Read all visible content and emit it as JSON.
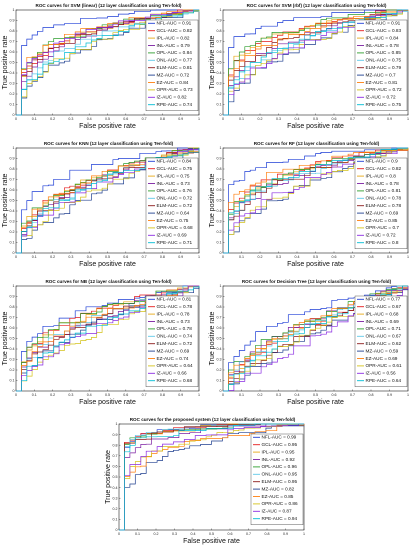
{
  "colors": {
    "NFL": "#1f3fd6",
    "GCL": "#e41a1c",
    "IPL": "#e6a817",
    "INL": "#7b1fa2",
    "OPL": "#2e9e2e",
    "ONL": "#5ec8e8",
    "ELM": "#8b1a1a",
    "MZ": "#1f3f8f",
    "EZ": "#ff7f0e",
    "OPR": "#d4c21a",
    "IZ": "#8a2be2",
    "RPE": "#00bcd4"
  },
  "xlabel": "False positive rate",
  "ylabel": "True positive rate",
  "ticks": [
    "0",
    "0.1",
    "0.2",
    "0.3",
    "0.4",
    "0.5",
    "0.6",
    "0.7",
    "0.8",
    "0.9",
    "1"
  ],
  "chart_data": [
    {
      "type": "line",
      "title": "ROC curves for SVM (linear) (12 layer classification using Ten-fold)",
      "xlabel": "False positive rate",
      "ylabel": "True positive rate",
      "xlim": [
        0,
        1
      ],
      "ylim": [
        0,
        1
      ],
      "grid": false,
      "legend": "right",
      "series": [
        {
          "name": "NFL-AUC = 0.91",
          "key": "NFL",
          "auc": 0.91
        },
        {
          "name": "GCL-AUC = 0.82",
          "key": "GCL",
          "auc": 0.82
        },
        {
          "name": "IPL-AUC = 0.82",
          "key": "IPL",
          "auc": 0.82
        },
        {
          "name": "INL-AUC = 0.79",
          "key": "INL",
          "auc": 0.79
        },
        {
          "name": "OPL-AUC = 0.84",
          "key": "OPL",
          "auc": 0.84
        },
        {
          "name": "ONL-AUC = 0.77",
          "key": "ONL",
          "auc": 0.77
        },
        {
          "name": "ELM-AUC = 0.81",
          "key": "ELM",
          "auc": 0.81
        },
        {
          "name": "MZ-AUC = 0.72",
          "key": "MZ",
          "auc": 0.72
        },
        {
          "name": "EZ-AUC = 0.84",
          "key": "EZ",
          "auc": 0.84
        },
        {
          "name": "OPR-AUC = 0.73",
          "key": "OPR",
          "auc": 0.73
        },
        {
          "name": "IZ-AUC = 0.82",
          "key": "IZ",
          "auc": 0.82
        },
        {
          "name": "RPE-AUC = 0.74",
          "key": "RPE",
          "auc": 0.74
        }
      ]
    },
    {
      "type": "line",
      "title": "ROC curves for SVM (rbf) (12 layer classification using Ten-fold)",
      "xlabel": "False positive rate",
      "ylabel": "True positive rate",
      "xlim": [
        0,
        1
      ],
      "ylim": [
        0,
        1
      ],
      "grid": false,
      "legend": "right",
      "series": [
        {
          "name": "NFL-AUC = 0.91",
          "key": "NFL",
          "auc": 0.91
        },
        {
          "name": "GCL-AUC = 0.83",
          "key": "GCL",
          "auc": 0.83
        },
        {
          "name": "IPL-AUC = 0.84",
          "key": "IPL",
          "auc": 0.84
        },
        {
          "name": "INL-AUC = 0.78",
          "key": "INL",
          "auc": 0.78
        },
        {
          "name": "OPL-AUC = 0.85",
          "key": "OPL",
          "auc": 0.85
        },
        {
          "name": "ONL-AUC = 0.75",
          "key": "ONL",
          "auc": 0.75
        },
        {
          "name": "ELM-AUC = 0.79",
          "key": "ELM",
          "auc": 0.79
        },
        {
          "name": "MZ-AUC = 0.7",
          "key": "MZ",
          "auc": 0.7
        },
        {
          "name": "EZ-AUC = 0.81",
          "key": "EZ",
          "auc": 0.81
        },
        {
          "name": "OPR-AUC = 0.72",
          "key": "OPR",
          "auc": 0.72
        },
        {
          "name": "IZ-AUC = 0.72",
          "key": "IZ",
          "auc": 0.72
        },
        {
          "name": "RPE-AUC = 0.75",
          "key": "RPE",
          "auc": 0.75
        }
      ]
    },
    {
      "type": "line",
      "title": "ROC curves for KNN (12 layer classification using Ten-fold)",
      "xlabel": "False positive rate",
      "ylabel": "True positive rate",
      "xlim": [
        0,
        1
      ],
      "ylim": [
        0,
        1
      ],
      "grid": false,
      "legend": "right",
      "series": [
        {
          "name": "NFL-AUC = 0.84",
          "key": "NFL",
          "auc": 0.84
        },
        {
          "name": "GCL-AUC = 0.75",
          "key": "GCL",
          "auc": 0.75
        },
        {
          "name": "IPL-AUC = 0.75",
          "key": "IPL",
          "auc": 0.75
        },
        {
          "name": "INL-AUC = 0.73",
          "key": "INL",
          "auc": 0.73
        },
        {
          "name": "OPL-AUC = 0.76",
          "key": "OPL",
          "auc": 0.76
        },
        {
          "name": "ONL-AUC = 0.72",
          "key": "ONL",
          "auc": 0.72
        },
        {
          "name": "ELM-AUC = 0.72",
          "key": "ELM",
          "auc": 0.72
        },
        {
          "name": "MZ-AUC = 0.64",
          "key": "MZ",
          "auc": 0.64
        },
        {
          "name": "EZ-AUC = 0.75",
          "key": "EZ",
          "auc": 0.75
        },
        {
          "name": "OPR-AUC = 0.68",
          "key": "OPR",
          "auc": 0.68
        },
        {
          "name": "IZ-AUC = 0.69",
          "key": "IZ",
          "auc": 0.69
        },
        {
          "name": "RPE-AUC = 0.71",
          "key": "RPE",
          "auc": 0.71
        }
      ]
    },
    {
      "type": "line",
      "title": "ROC curves for RF (12 layer classification using Ten-fold)",
      "xlabel": "False positive rate",
      "ylabel": "True positive rate",
      "xlim": [
        0,
        1
      ],
      "ylim": [
        0,
        1
      ],
      "grid": false,
      "legend": "right",
      "series": [
        {
          "name": "NFL-AUC = 0.9",
          "key": "NFL",
          "auc": 0.9
        },
        {
          "name": "GCL-AUC = 0.82",
          "key": "GCL",
          "auc": 0.82
        },
        {
          "name": "IPL-AUC = 0.8",
          "key": "IPL",
          "auc": 0.8
        },
        {
          "name": "INL-AUC = 0.78",
          "key": "INL",
          "auc": 0.78
        },
        {
          "name": "OPL-AUC = 0.81",
          "key": "OPL",
          "auc": 0.81
        },
        {
          "name": "ONL-AUC = 0.78",
          "key": "ONL",
          "auc": 0.78
        },
        {
          "name": "ELM-AUC = 0.78",
          "key": "ELM",
          "auc": 0.78
        },
        {
          "name": "MZ-AUC = 0.69",
          "key": "MZ",
          "auc": 0.69
        },
        {
          "name": "EZ-AUC = 0.85",
          "key": "EZ",
          "auc": 0.85
        },
        {
          "name": "OPR-AUC = 0.7",
          "key": "OPR",
          "auc": 0.7
        },
        {
          "name": "IZ-AUC = 0.72",
          "key": "IZ",
          "auc": 0.72
        },
        {
          "name": "RPE-AUC = 0.8",
          "key": "RPE",
          "auc": 0.8
        }
      ]
    },
    {
      "type": "line",
      "title": "ROC curves for NB (12 layer classification using Ten-fold)",
      "xlabel": "False positive rate",
      "ylabel": "True positive rate",
      "xlim": [
        0,
        1
      ],
      "ylim": [
        0,
        1
      ],
      "grid": false,
      "legend": "right",
      "series": [
        {
          "name": "NFL-AUC = 0.81",
          "key": "NFL",
          "auc": 0.81
        },
        {
          "name": "GCL-AUC = 0.78",
          "key": "GCL",
          "auc": 0.78
        },
        {
          "name": "IPL-AUC = 0.78",
          "key": "IPL",
          "auc": 0.78
        },
        {
          "name": "INL-AUC = 0.73",
          "key": "INL",
          "auc": 0.73
        },
        {
          "name": "OPL-AUC = 0.78",
          "key": "OPL",
          "auc": 0.78
        },
        {
          "name": "ONL-AUC = 0.74",
          "key": "ONL",
          "auc": 0.74
        },
        {
          "name": "ELM-AUC = 0.72",
          "key": "ELM",
          "auc": 0.72
        },
        {
          "name": "MZ-AUC = 0.69",
          "key": "MZ",
          "auc": 0.69
        },
        {
          "name": "EZ-AUC = 0.74",
          "key": "EZ",
          "auc": 0.74
        },
        {
          "name": "OPR-AUC = 0.64",
          "key": "OPR",
          "auc": 0.64
        },
        {
          "name": "IZ-AUC = 0.66",
          "key": "IZ",
          "auc": 0.66
        },
        {
          "name": "RPE-AUC = 0.68",
          "key": "RPE",
          "auc": 0.68
        }
      ]
    },
    {
      "type": "line",
      "title": "ROC curves for Decision Tree (12 layer classification using Ten-fold)",
      "xlabel": "False positive rate",
      "ylabel": "True positive rate",
      "xlim": [
        0,
        1
      ],
      "ylim": [
        0,
        1
      ],
      "grid": false,
      "legend": "right",
      "series": [
        {
          "name": "NFL-AUC = 0.77",
          "key": "NFL",
          "auc": 0.77
        },
        {
          "name": "GCL-AUC = 0.67",
          "key": "GCL",
          "auc": 0.67
        },
        {
          "name": "IPL-AUC = 0.68",
          "key": "IPL",
          "auc": 0.68
        },
        {
          "name": "INL-AUC = 0.69",
          "key": "INL",
          "auc": 0.69
        },
        {
          "name": "OPL-AUC = 0.71",
          "key": "OPL",
          "auc": 0.71
        },
        {
          "name": "ONL-AUC = 0.67",
          "key": "ONL",
          "auc": 0.67
        },
        {
          "name": "ELM-AUC = 0.62",
          "key": "ELM",
          "auc": 0.62
        },
        {
          "name": "MZ-AUC = 0.59",
          "key": "MZ",
          "auc": 0.59
        },
        {
          "name": "EZ-AUC = 0.69",
          "key": "EZ",
          "auc": 0.69
        },
        {
          "name": "OPR-AUC = 0.61",
          "key": "OPR",
          "auc": 0.61
        },
        {
          "name": "IZ-AUC = 0.56",
          "key": "IZ",
          "auc": 0.56
        },
        {
          "name": "RPE-AUC = 0.64",
          "key": "RPE",
          "auc": 0.64
        }
      ]
    },
    {
      "type": "line",
      "title": "ROC curves for the proposed system (12 layer classification using Ten-fold)",
      "xlabel": "False positive rate",
      "ylabel": "True positive rate",
      "xlim": [
        0,
        1
      ],
      "ylim": [
        0,
        1
      ],
      "grid": false,
      "legend": "right",
      "series": [
        {
          "name": "NFL-AUC = 0.99",
          "key": "NFL",
          "auc": 0.99
        },
        {
          "name": "GCL-AUC = 0.95",
          "key": "GCL",
          "auc": 0.95
        },
        {
          "name": "IPL-AUC = 0.95",
          "key": "IPL",
          "auc": 0.95
        },
        {
          "name": "INL-AUC = 0.92",
          "key": "INL",
          "auc": 0.92
        },
        {
          "name": "OPL-AUC = 0.96",
          "key": "OPL",
          "auc": 0.96
        },
        {
          "name": "ONL-AUC = 0.95",
          "key": "ONL",
          "auc": 0.95
        },
        {
          "name": "ELM-AUC = 0.95",
          "key": "ELM",
          "auc": 0.95
        },
        {
          "name": "MZ-AUC = 0.82",
          "key": "MZ",
          "auc": 0.82
        },
        {
          "name": "EZ-AUC = 0.85",
          "key": "EZ",
          "auc": 0.85
        },
        {
          "name": "OPR-AUC = 0.86",
          "key": "OPR",
          "auc": 0.86
        },
        {
          "name": "IZ-AUC = 0.87",
          "key": "IZ",
          "auc": 0.87
        },
        {
          "name": "RPE-AUC = 0.94",
          "key": "RPE",
          "auc": 0.94
        }
      ]
    }
  ]
}
